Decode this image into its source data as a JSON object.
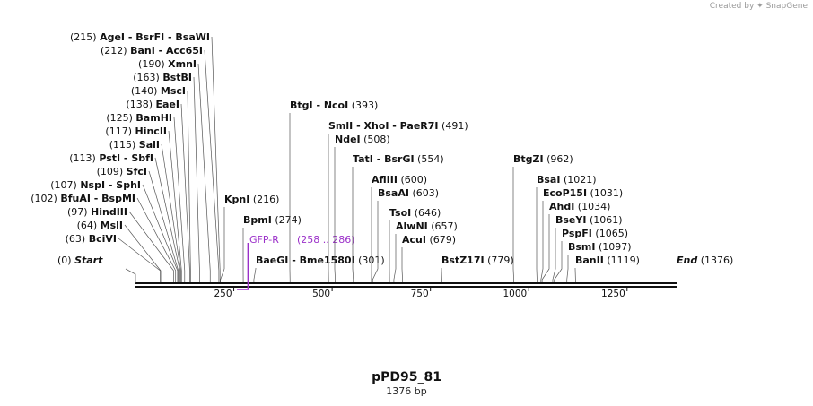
{
  "credit": {
    "prefix": "Created by",
    "brand": "SnapGene"
  },
  "map": {
    "name": "pPD95_81",
    "length_label": "1376 bp",
    "length": 1376,
    "ticks": [
      "250",
      "500",
      "750",
      "1000",
      "1250"
    ],
    "feature": {
      "name": "GFP-R",
      "range": "(258 .. 286)",
      "color": "#9b30c9"
    },
    "start_label": {
      "pos": "(0)",
      "name": "Start"
    },
    "end_label": {
      "name": "End",
      "pos": "(1376)"
    },
    "sites_left": [
      {
        "pos": "(215)",
        "names": [
          "AgeI",
          "BsrFI",
          "BsaWI"
        ],
        "site": 215
      },
      {
        "pos": "(212)",
        "names": [
          "BanI",
          "Acc65I"
        ],
        "site": 212
      },
      {
        "pos": "(190)",
        "names": [
          "XmnI"
        ],
        "site": 190
      },
      {
        "pos": "(163)",
        "names": [
          "BstBI"
        ],
        "site": 163
      },
      {
        "pos": "(140)",
        "names": [
          "MscI"
        ],
        "site": 140
      },
      {
        "pos": "(138)",
        "names": [
          "EaeI"
        ],
        "site": 138
      },
      {
        "pos": "(125)",
        "names": [
          "BamHI"
        ],
        "site": 125
      },
      {
        "pos": "(117)",
        "names": [
          "HincII"
        ],
        "site": 117
      },
      {
        "pos": "(115)",
        "names": [
          "SalI"
        ],
        "site": 115
      },
      {
        "pos": "(113)",
        "names": [
          "PstI",
          "SbfI"
        ],
        "site": 113
      },
      {
        "pos": "(109)",
        "names": [
          "SfcI"
        ],
        "site": 109
      },
      {
        "pos": "(107)",
        "names": [
          "NspI",
          "SphI"
        ],
        "site": 107
      },
      {
        "pos": "(102)",
        "names": [
          "BfuAI",
          "BspMI"
        ],
        "site": 102
      },
      {
        "pos": "(97)",
        "names": [
          "HindIII"
        ],
        "site": 97
      },
      {
        "pos": "(64)",
        "names": [
          "MslI"
        ],
        "site": 64
      },
      {
        "pos": "(63)",
        "names": [
          "BciVI"
        ],
        "site": 63
      }
    ],
    "sites_right": [
      {
        "names": [
          "KpnI"
        ],
        "pos": "(216)",
        "site": 216
      },
      {
        "names": [
          "BpmI"
        ],
        "pos": "(274)",
        "site": 274
      },
      {
        "names": [
          "BaeGI",
          "Bme1580I"
        ],
        "pos": "(301)",
        "site": 301
      },
      {
        "names": [
          "BtgI",
          "NcoI"
        ],
        "pos": "(393)",
        "site": 393
      },
      {
        "names": [
          "SmlI",
          "XhoI",
          "PaeR7I"
        ],
        "pos": "(491)",
        "site": 491
      },
      {
        "names": [
          "NdeI"
        ],
        "pos": "(508)",
        "site": 508
      },
      {
        "names": [
          "TatI",
          "BsrGI"
        ],
        "pos": "(554)",
        "site": 554
      },
      {
        "names": [
          "AflIII"
        ],
        "pos": "(600)",
        "site": 600
      },
      {
        "names": [
          "BsaAI"
        ],
        "pos": "(603)",
        "site": 603
      },
      {
        "names": [
          "TsoI"
        ],
        "pos": "(646)",
        "site": 646
      },
      {
        "names": [
          "AlwNI"
        ],
        "pos": "(657)",
        "site": 657
      },
      {
        "names": [
          "AcuI"
        ],
        "pos": "(679)",
        "site": 679
      },
      {
        "names": [
          "BstZ17I"
        ],
        "pos": "(779)",
        "site": 779
      },
      {
        "names": [
          "BtgZI"
        ],
        "pos": "(962)",
        "site": 962
      },
      {
        "names": [
          "BsaI"
        ],
        "pos": "(1021)",
        "site": 1021
      },
      {
        "names": [
          "EcoP15I"
        ],
        "pos": "(1031)",
        "site": 1031
      },
      {
        "names": [
          "AhdI"
        ],
        "pos": "(1034)",
        "site": 1034
      },
      {
        "names": [
          "BseYI"
        ],
        "pos": "(1061)",
        "site": 1061
      },
      {
        "names": [
          "PspFI"
        ],
        "pos": "(1065)",
        "site": 1065
      },
      {
        "names": [
          "BsmI"
        ],
        "pos": "(1097)",
        "site": 1097
      },
      {
        "names": [
          "BanII"
        ],
        "pos": "(1119)",
        "site": 1119
      }
    ]
  }
}
